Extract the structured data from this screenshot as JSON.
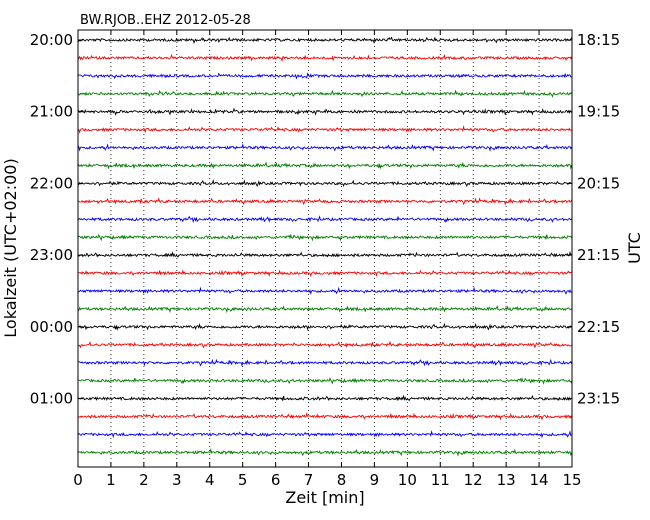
{
  "chart_data": {
    "type": "line",
    "chart_kind": "dayplot",
    "title": "BW.RJOB..EHZ 2012-05-28",
    "xlabel": "Zeit  [min]",
    "ylabel_left": "Lokalzeit (UTC+02:00)",
    "ylabel_right": "UTC",
    "xlim": [
      0,
      15
    ],
    "xticks": [
      "0",
      "1",
      "2",
      "3",
      "4",
      "5",
      "6",
      "7",
      "8",
      "9",
      "10",
      "11",
      "12",
      "13",
      "14",
      "15"
    ],
    "grid": "vertical dotted",
    "trace_count": 24,
    "trace_colors": [
      "#000000",
      "#ff0000",
      "#0000ff",
      "#008000"
    ],
    "left_tick_labels": [
      "20:00",
      "21:00",
      "22:00",
      "23:00",
      "00:00",
      "01:00"
    ],
    "right_tick_labels": [
      "18:15",
      "19:15",
      "20:15",
      "21:15",
      "22:15",
      "23:15"
    ],
    "label_trace_indices": [
      0,
      4,
      8,
      12,
      16,
      20
    ]
  }
}
